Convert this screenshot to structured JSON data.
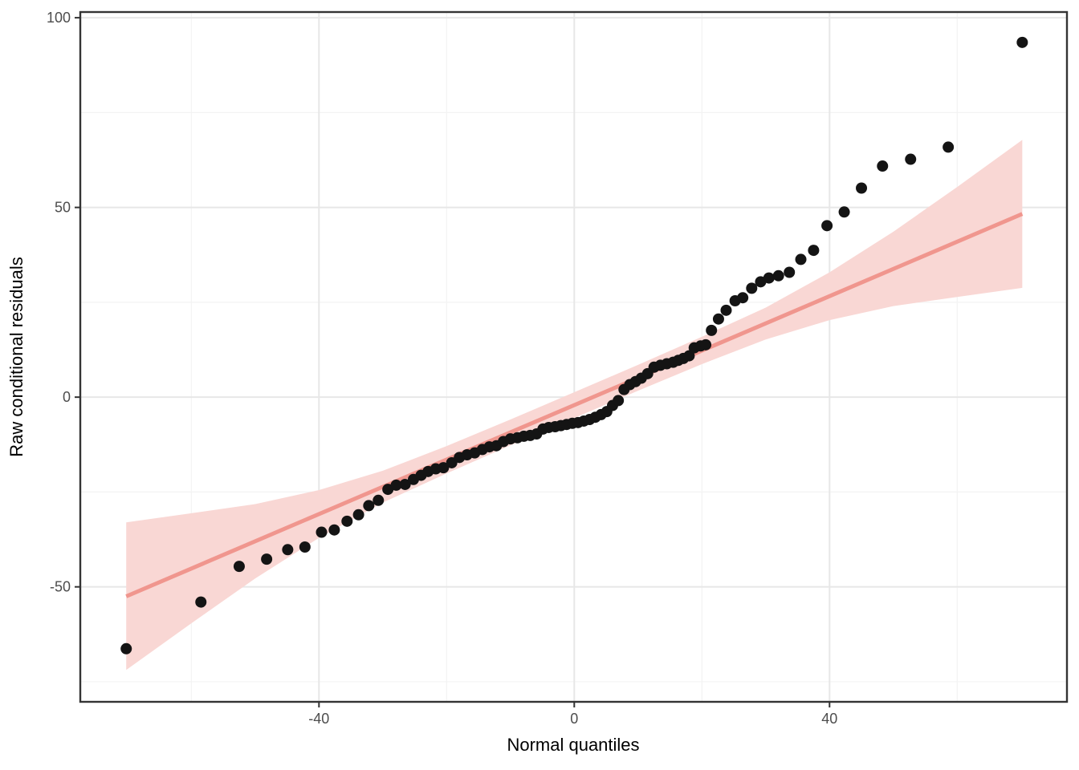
{
  "chart_data": {
    "type": "scatter",
    "title": "",
    "xlabel": "Normal quantiles",
    "ylabel": "Raw conditional residuals",
    "xlim": [
      -77.4,
      77.2
    ],
    "ylim": [
      -80.3,
      101.5
    ],
    "grid": "on",
    "legend": "none",
    "x_ticks": {
      "values": [
        -40,
        0,
        40
      ],
      "labels": [
        "-40",
        "0",
        "40"
      ],
      "minor": [
        -60,
        -20,
        20,
        60
      ]
    },
    "y_ticks": {
      "values": [
        -50,
        0,
        50,
        100
      ],
      "labels": [
        "-50",
        "0",
        "50",
        "100"
      ],
      "minor": [
        -75,
        -25,
        25,
        75
      ]
    },
    "points": [
      [
        -70.2,
        -66.3
      ],
      [
        -58.5,
        -54.0
      ],
      [
        -52.5,
        -44.6
      ],
      [
        -48.2,
        -42.7
      ],
      [
        -44.9,
        -40.2
      ],
      [
        -42.2,
        -39.5
      ],
      [
        -39.6,
        -35.6
      ],
      [
        -37.6,
        -35.0
      ],
      [
        -35.6,
        -32.7
      ],
      [
        -33.8,
        -31.0
      ],
      [
        -32.2,
        -28.6
      ],
      [
        -30.7,
        -27.2
      ],
      [
        -29.2,
        -24.3
      ],
      [
        -27.9,
        -23.2
      ],
      [
        -26.5,
        -23.0
      ],
      [
        -25.2,
        -21.7
      ],
      [
        -24.0,
        -20.6
      ],
      [
        -22.9,
        -19.6
      ],
      [
        -21.7,
        -18.9
      ],
      [
        -20.5,
        -18.6
      ],
      [
        -19.2,
        -17.3
      ],
      [
        -18.0,
        -15.9
      ],
      [
        -16.8,
        -15.2
      ],
      [
        -15.6,
        -14.7
      ],
      [
        -14.4,
        -13.8
      ],
      [
        -13.3,
        -13.1
      ],
      [
        -12.2,
        -12.8
      ],
      [
        -11.1,
        -11.7
      ],
      [
        -10.0,
        -11.0
      ],
      [
        -8.9,
        -10.7
      ],
      [
        -7.9,
        -10.3
      ],
      [
        -6.9,
        -10.1
      ],
      [
        -5.9,
        -9.7
      ],
      [
        -4.9,
        -8.4
      ],
      [
        -4.0,
        -8.0
      ],
      [
        -3.0,
        -7.8
      ],
      [
        -2.1,
        -7.5
      ],
      [
        -1.2,
        -7.2
      ],
      [
        -0.3,
        -6.9
      ],
      [
        0.6,
        -6.7
      ],
      [
        1.5,
        -6.3
      ],
      [
        2.4,
        -5.9
      ],
      [
        3.3,
        -5.3
      ],
      [
        4.2,
        -4.6
      ],
      [
        5.1,
        -3.8
      ],
      [
        6.0,
        -2.2
      ],
      [
        6.9,
        -0.9
      ],
      [
        7.8,
        2.0
      ],
      [
        8.7,
        3.3
      ],
      [
        9.6,
        4.1
      ],
      [
        10.5,
        5.0
      ],
      [
        11.5,
        6.2
      ],
      [
        12.5,
        7.9
      ],
      [
        13.5,
        8.4
      ],
      [
        14.5,
        8.8
      ],
      [
        15.5,
        9.2
      ],
      [
        16.3,
        9.7
      ],
      [
        17.1,
        10.2
      ],
      [
        18.0,
        10.9
      ],
      [
        18.8,
        13.0
      ],
      [
        19.8,
        13.5
      ],
      [
        20.6,
        13.8
      ],
      [
        21.5,
        17.6
      ],
      [
        22.6,
        20.6
      ],
      [
        23.8,
        22.9
      ],
      [
        25.2,
        25.4
      ],
      [
        26.4,
        26.2
      ],
      [
        27.8,
        28.7
      ],
      [
        29.2,
        30.4
      ],
      [
        30.5,
        31.4
      ],
      [
        32.0,
        32.0
      ],
      [
        33.7,
        32.9
      ],
      [
        35.5,
        36.3
      ],
      [
        37.5,
        38.7
      ],
      [
        39.6,
        45.2
      ],
      [
        42.3,
        48.8
      ],
      [
        45.0,
        55.1
      ],
      [
        48.3,
        60.9
      ],
      [
        52.7,
        62.7
      ],
      [
        58.6,
        65.9
      ],
      [
        70.2,
        93.5
      ]
    ],
    "smooth_line": {
      "x1": -70.2,
      "y1": -52.5,
      "x2": 70.2,
      "y2": 48.3
    },
    "ribbon": [
      {
        "x": -70.2,
        "upper": -33.0,
        "lower": -71.9
      },
      {
        "x": -60,
        "upper": -30.6,
        "lower": -59.6
      },
      {
        "x": -50,
        "upper": -28.2,
        "lower": -47.8
      },
      {
        "x": -40,
        "upper": -24.5,
        "lower": -37.1
      },
      {
        "x": -30,
        "upper": -19.4,
        "lower": -27.8
      },
      {
        "x": -20,
        "upper": -12.9,
        "lower": -20.1
      },
      {
        "x": -10,
        "upper": -5.9,
        "lower": -12.7
      },
      {
        "x": 0,
        "upper": 1.3,
        "lower": -5.5
      },
      {
        "x": 10,
        "upper": 8.5,
        "lower": 1.7
      },
      {
        "x": 20,
        "upper": 15.9,
        "lower": 8.7
      },
      {
        "x": 30,
        "upper": 23.6,
        "lower": 15.2
      },
      {
        "x": 40,
        "upper": 32.9,
        "lower": 20.3
      },
      {
        "x": 50,
        "upper": 43.6,
        "lower": 24.0
      },
      {
        "x": 60,
        "upper": 55.4,
        "lower": 26.4
      },
      {
        "x": 70.2,
        "upper": 67.8,
        "lower": 28.8
      }
    ],
    "colors": {
      "point": "#141414",
      "smooth_line": "#F0968E",
      "ribbon": "#F9D7D4",
      "grid_major": "#E7E7E7",
      "grid_minor": "#F3F3F3",
      "panel_border": "#343434",
      "tick": "#333333",
      "tick_label": "#4D4D4D",
      "axis_title": "#000000",
      "background": "#FFFFFF"
    }
  }
}
